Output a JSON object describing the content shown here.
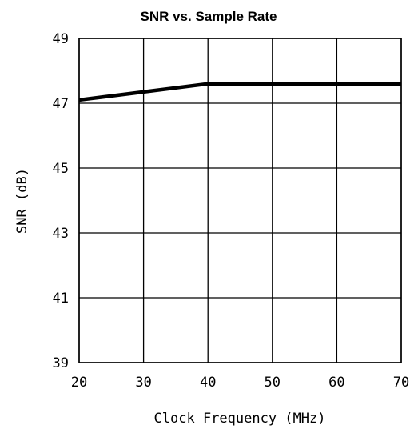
{
  "chart_data": {
    "type": "line",
    "title": "SNR vs. Sample Rate",
    "xlabel": "Clock Frequency (MHz)",
    "ylabel": "SNR (dB)",
    "xlim": [
      20,
      70
    ],
    "ylim": [
      39,
      49
    ],
    "x_ticks": [
      20,
      30,
      40,
      50,
      60,
      70
    ],
    "y_ticks": [
      39,
      41,
      43,
      45,
      47,
      49
    ],
    "x_tick_labels": [
      "20",
      "30",
      "40",
      "50",
      "60",
      "70"
    ],
    "y_tick_labels": [
      "39",
      "41",
      "43",
      "45",
      "47",
      "49"
    ],
    "grid": true,
    "series": [
      {
        "x": [
          20,
          40,
          70
        ],
        "y": [
          47.1,
          47.6,
          47.6
        ]
      }
    ]
  }
}
